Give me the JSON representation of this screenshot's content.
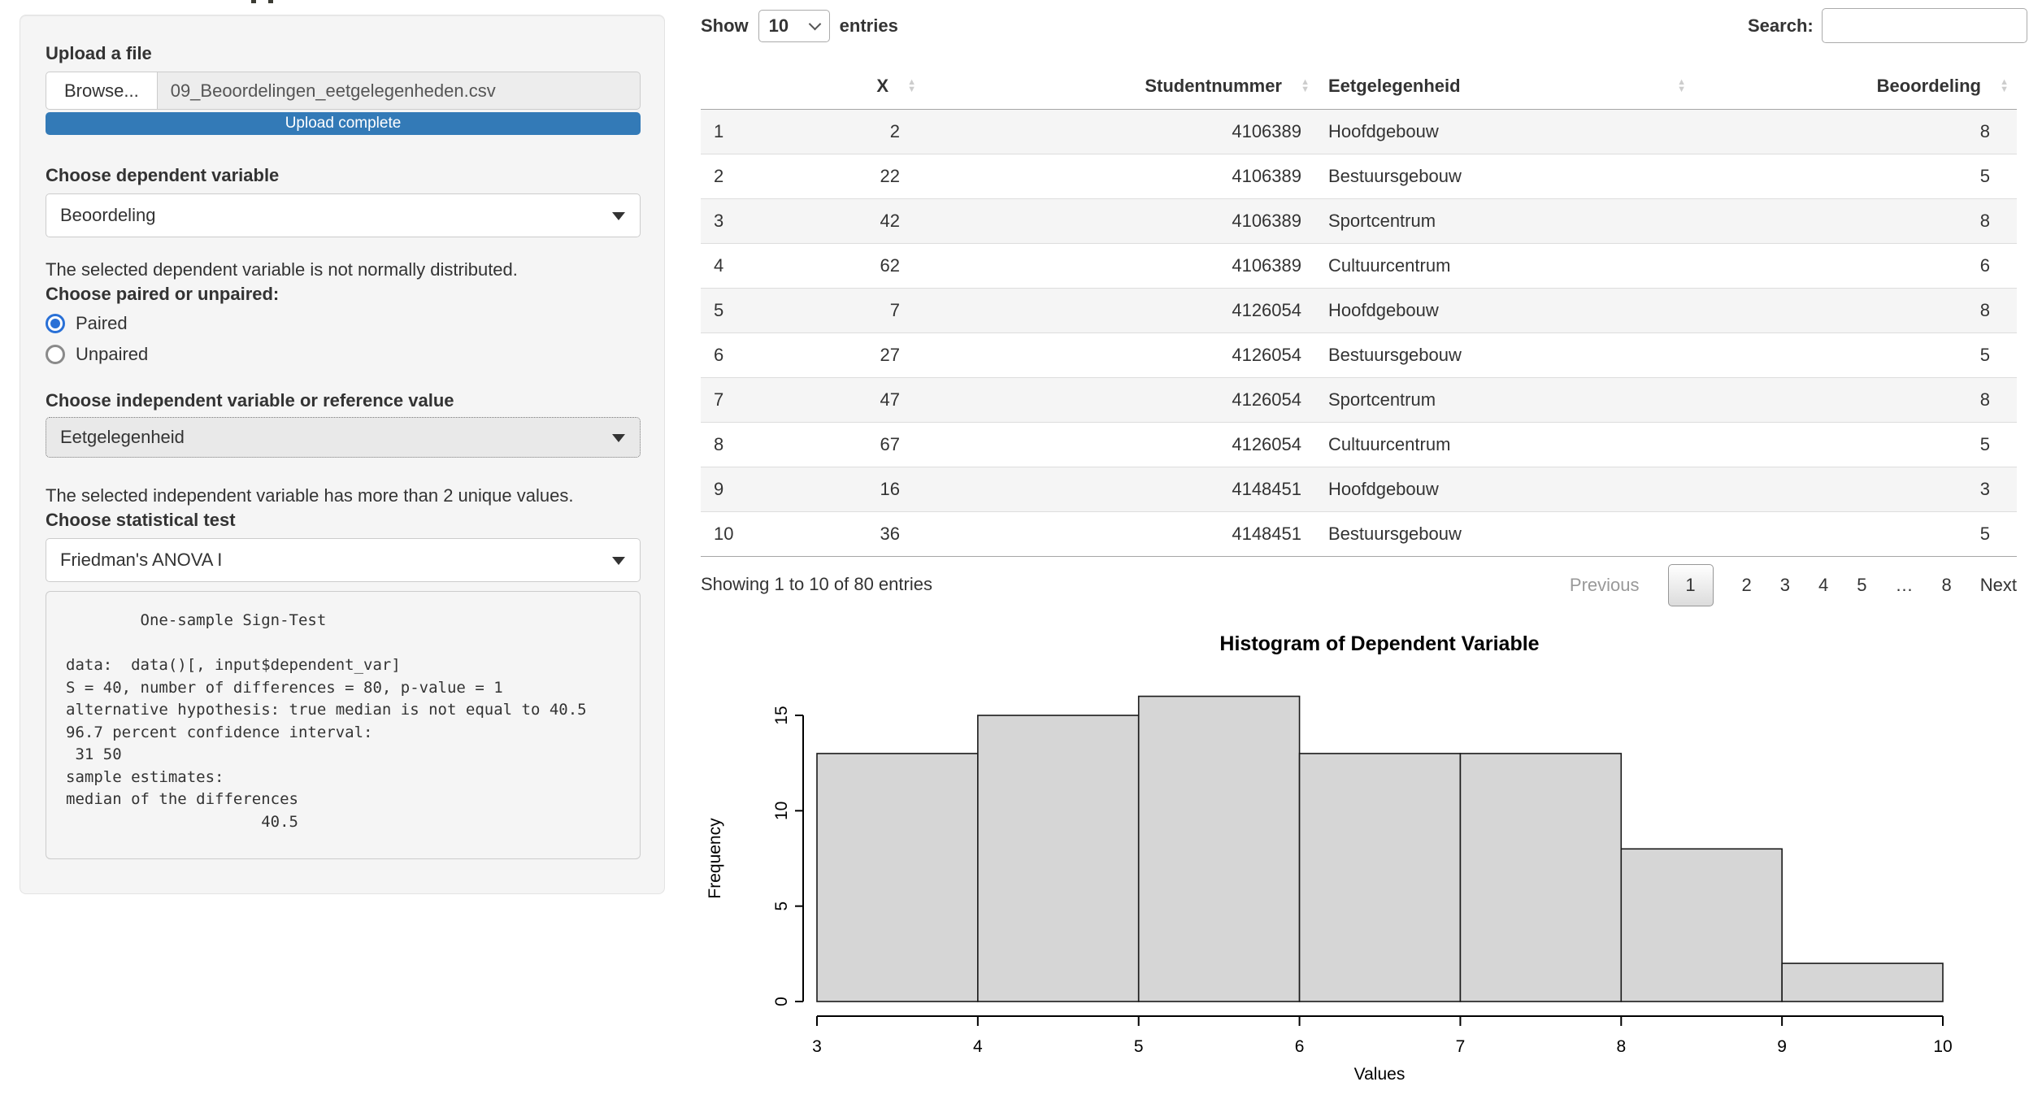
{
  "colors": {
    "accent_blue": "#337ab7",
    "panel_bg": "#f5f5f5",
    "radio_blue": "#2970d6",
    "row_stripe": "#f5f5f5",
    "active_page_border": "#979797"
  },
  "sidebar": {
    "upload_label": "Upload a file",
    "browse_button": "Browse...",
    "file_name": "09_Beoordelingen_eetgelegenheden.csv",
    "upload_status": "Upload complete",
    "dependent_label": "Choose dependent variable",
    "dependent_value": "Beoordeling",
    "normality_note": "The selected dependent variable is not normally distributed.",
    "paired_label": "Choose paired or unpaired:",
    "paired_options": [
      {
        "label": "Paired",
        "selected": true
      },
      {
        "label": "Unpaired",
        "selected": false
      }
    ],
    "independent_label": "Choose independent variable or reference value",
    "independent_value": "Eetgelegenheid",
    "unique_note": "The selected independent variable has more than 2 unique values.",
    "test_label": "Choose statistical test",
    "test_value": "Friedman's ANOVA I",
    "test_output": "        One-sample Sign-Test\n\ndata:  data()[, input$dependent_var]\nS = 40, number of differences = 80, p-value = 1\nalternative hypothesis: true median is not equal to 40.5\n96.7 percent confidence interval:\n 31 50\nsample estimates:\nmedian of the differences\n                     40.5"
  },
  "table": {
    "show_label": "Show",
    "page_length": "10",
    "entries_label": "entries",
    "search_label": "Search:",
    "search_value": "",
    "columns": [
      "",
      "X",
      "Studentnummer",
      "Eetgelegenheid",
      "Beoordeling"
    ],
    "rows": [
      [
        "1",
        "2",
        "4106389",
        "Hoofdgebouw",
        "8"
      ],
      [
        "2",
        "22",
        "4106389",
        "Bestuursgebouw",
        "5"
      ],
      [
        "3",
        "42",
        "4106389",
        "Sportcentrum",
        "8"
      ],
      [
        "4",
        "62",
        "4106389",
        "Cultuurcentrum",
        "6"
      ],
      [
        "5",
        "7",
        "4126054",
        "Hoofdgebouw",
        "8"
      ],
      [
        "6",
        "27",
        "4126054",
        "Bestuursgebouw",
        "5"
      ],
      [
        "7",
        "47",
        "4126054",
        "Sportcentrum",
        "8"
      ],
      [
        "8",
        "67",
        "4126054",
        "Cultuurcentrum",
        "5"
      ],
      [
        "9",
        "16",
        "4148451",
        "Hoofdgebouw",
        "3"
      ],
      [
        "10",
        "36",
        "4148451",
        "Bestuursgebouw",
        "5"
      ]
    ],
    "info": "Showing 1 to 10 of 80 entries",
    "pagination": {
      "previous": "Previous",
      "pages": [
        "1",
        "2",
        "3",
        "4",
        "5",
        "…",
        "8"
      ],
      "active": "1",
      "next": "Next"
    }
  },
  "chart_data": {
    "type": "bar",
    "subtype": "histogram",
    "title": "Histogram of Dependent Variable",
    "xlabel": "Values",
    "ylabel": "Frequency",
    "bin_edges": [
      3,
      4,
      5,
      6,
      7,
      8,
      9,
      10
    ],
    "frequencies": [
      13,
      15,
      16,
      13,
      13,
      8,
      2
    ],
    "xticks": [
      3,
      4,
      5,
      6,
      7,
      8,
      9,
      10
    ],
    "yticks": [
      0,
      5,
      10,
      15
    ],
    "ylim": [
      0,
      16
    ],
    "bar_fill": "#d6d6d6",
    "bar_stroke": "#1a1a1a",
    "grid": false,
    "legend": "none"
  }
}
